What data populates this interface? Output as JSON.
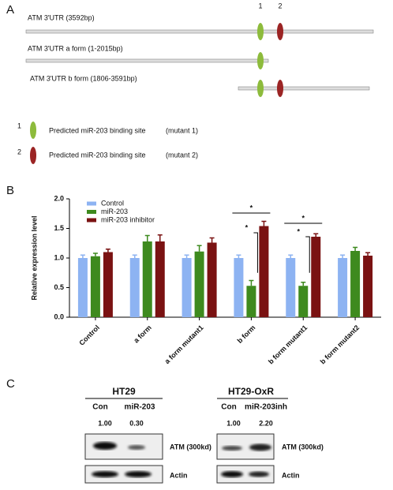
{
  "panel_a": {
    "label": "A",
    "site_numbers": [
      "1",
      "2"
    ],
    "constructs": [
      "ATM 3'UTR (3592bp)",
      "ATM 3'UTR a form (1-2015bp)",
      "ATM 3'UTR b form (1806-3591bp)"
    ],
    "legend": [
      {
        "number": "1",
        "text": "Predicted miR-203 binding site",
        "note": "(mutant 1)"
      },
      {
        "number": "2",
        "text": "Predicted miR-203 binding site",
        "note": "(mutant 2)"
      }
    ]
  },
  "chart_data": {
    "type": "bar",
    "panel_label": "B",
    "ylabel": "Relative expression level",
    "categories": [
      "Control",
      "a form",
      "a form mutant1",
      "b form",
      "b form mutant1",
      "b form mutant2"
    ],
    "series": [
      {
        "name": "Control",
        "color": "#8db3f2",
        "values": [
          1.0,
          1.0,
          1.0,
          1.0,
          1.0,
          1.0
        ],
        "errors": [
          0.05,
          0.05,
          0.05,
          0.05,
          0.05,
          0.05
        ]
      },
      {
        "name": "miR-203",
        "color": "#3e8a1e",
        "values": [
          1.03,
          1.28,
          1.11,
          0.53,
          0.53,
          1.12
        ],
        "errors": [
          0.05,
          0.1,
          0.1,
          0.09,
          0.06,
          0.06
        ]
      },
      {
        "name": "miR-203 inhibitor",
        "color": "#7a1212",
        "values": [
          1.1,
          1.28,
          1.26,
          1.54,
          1.36,
          1.04
        ],
        "errors": [
          0.05,
          0.11,
          0.08,
          0.08,
          0.05,
          0.05
        ]
      }
    ],
    "ylim": [
      0,
      2.0
    ],
    "yticks": [
      {
        "value": 0,
        "label": "0.0"
      },
      0.5,
      {
        "value": 1,
        "label": "1.0"
      },
      1.5,
      {
        "value": 2,
        "label": "2.0"
      }
    ],
    "annotations": [
      "*",
      "*",
      "*",
      "*"
    ]
  },
  "panel_c": {
    "label": "C",
    "left": {
      "title": "HT29",
      "lanes": [
        "Con",
        "miR-203"
      ],
      "quant": [
        "1.00",
        "0.30"
      ],
      "target": "ATM (300kd)",
      "control": "Actin"
    },
    "right": {
      "title": "HT29-OxR",
      "lanes": [
        "Con",
        "miR-203inh"
      ],
      "quant": [
        "1.00",
        "2.20"
      ],
      "target": "ATM (300kd)",
      "control": "Actin"
    }
  }
}
